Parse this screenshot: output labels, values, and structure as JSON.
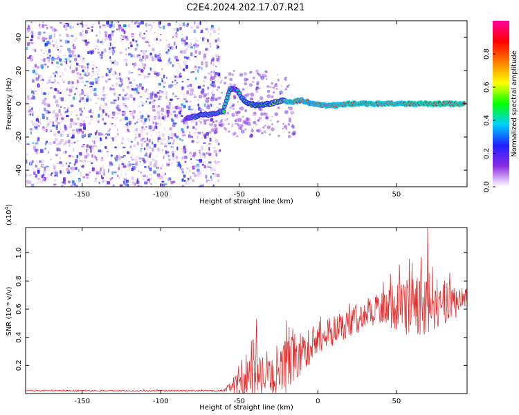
{
  "title": "C2E4.2024.202.17.07.R21",
  "chart_data": [
    {
      "type": "heatmap",
      "name": "spectrogram",
      "xlabel": "Height of straight line (km)",
      "ylabel": "Frequency (Hz)",
      "xlim": [
        -186,
        95
      ],
      "ylim": [
        -50,
        50
      ],
      "xticks": [
        -150,
        -100,
        -50,
        0,
        50
      ],
      "yticks": [
        -40,
        -20,
        0,
        20,
        40
      ],
      "colorbar": {
        "label": "Normalized spectral amplitude",
        "range": [
          0,
          1
        ],
        "ticks": [
          0.0,
          0.2,
          0.4,
          0.6,
          0.8
        ],
        "colors": [
          "#ffffff",
          "#8a2be2",
          "#2020ff",
          "#00d0ff",
          "#00ff00",
          "#ffff00",
          "#ff8000",
          "#ff0000",
          "#ff00a0"
        ]
      },
      "noise_region_x": [
        -186,
        -63
      ],
      "signal_track": [
        {
          "x": -84,
          "y": -9,
          "amp": 0.3
        },
        {
          "x": -75,
          "y": -7,
          "amp": 0.45
        },
        {
          "x": -66,
          "y": -6,
          "amp": 0.4
        },
        {
          "x": -60,
          "y": -4,
          "amp": 0.45
        },
        {
          "x": -56,
          "y": 9,
          "amp": 0.45
        },
        {
          "x": -52,
          "y": 9,
          "amp": 0.4
        },
        {
          "x": -48,
          "y": 3,
          "amp": 0.45
        },
        {
          "x": -44,
          "y": 0,
          "amp": 0.5
        },
        {
          "x": -38,
          "y": -1,
          "amp": 0.55
        },
        {
          "x": -30,
          "y": 0,
          "amp": 0.55
        },
        {
          "x": -23,
          "y": 2,
          "amp": 0.6
        },
        {
          "x": -18,
          "y": 1,
          "amp": 0.85
        },
        {
          "x": -10,
          "y": 2,
          "amp": 0.8
        },
        {
          "x": -3,
          "y": 0,
          "amp": 0.75
        },
        {
          "x": 5,
          "y": -1,
          "amp": 0.8
        },
        {
          "x": 12,
          "y": -1,
          "amp": 0.8
        },
        {
          "x": 20,
          "y": 0,
          "amp": 0.85
        },
        {
          "x": 35,
          "y": 0,
          "amp": 0.85
        },
        {
          "x": 50,
          "y": 0,
          "amp": 0.85
        },
        {
          "x": 65,
          "y": 0,
          "amp": 0.9
        },
        {
          "x": 80,
          "y": 0,
          "amp": 0.9
        },
        {
          "x": 93,
          "y": 0,
          "amp": 0.9
        }
      ]
    },
    {
      "type": "line",
      "name": "snr",
      "xlabel": "Height of straight line (km)",
      "ylabel": "SNR (10 * v/v)",
      "yscale_label": "(x10",
      "yscale_exp": "4",
      "yscale_close": ")",
      "xlim": [
        -186,
        95
      ],
      "ylim": [
        0,
        1.18
      ],
      "xticks": [
        -150,
        -100,
        -50,
        0,
        50
      ],
      "yticks": [
        0.2,
        0.4,
        0.6,
        0.8,
        1.0
      ],
      "series_color": "#e03030",
      "envelope": [
        {
          "x": -186,
          "base": 0.02,
          "amp": 0.005
        },
        {
          "x": -60,
          "base": 0.02,
          "amp": 0.005
        },
        {
          "x": -55,
          "base": 0.05,
          "amp": 0.04
        },
        {
          "x": -42,
          "base": 0.15,
          "amp": 0.25
        },
        {
          "x": -35,
          "base": 0.1,
          "amp": 0.12
        },
        {
          "x": -25,
          "base": 0.12,
          "amp": 0.14
        },
        {
          "x": -18,
          "base": 0.25,
          "amp": 0.25
        },
        {
          "x": -10,
          "base": 0.28,
          "amp": 0.14
        },
        {
          "x": 0,
          "base": 0.4,
          "amp": 0.12
        },
        {
          "x": 20,
          "base": 0.5,
          "amp": 0.1
        },
        {
          "x": 40,
          "base": 0.62,
          "amp": 0.12
        },
        {
          "x": 55,
          "base": 0.62,
          "amp": 0.2
        },
        {
          "x": 70,
          "base": 0.62,
          "amp": 0.22
        },
        {
          "x": 85,
          "base": 0.65,
          "amp": 0.14
        },
        {
          "x": 95,
          "base": 0.68,
          "amp": 0.08
        }
      ],
      "spikes": [
        {
          "x": -39,
          "y": 0.53
        },
        {
          "x": -20,
          "y": 0.52
        },
        {
          "x": 52,
          "y": 0.92
        },
        {
          "x": 60,
          "y": 0.93
        },
        {
          "x": 70,
          "y": 1.18
        },
        {
          "x": 73,
          "y": 0.9
        },
        {
          "x": 84,
          "y": 0.86
        }
      ]
    }
  ]
}
